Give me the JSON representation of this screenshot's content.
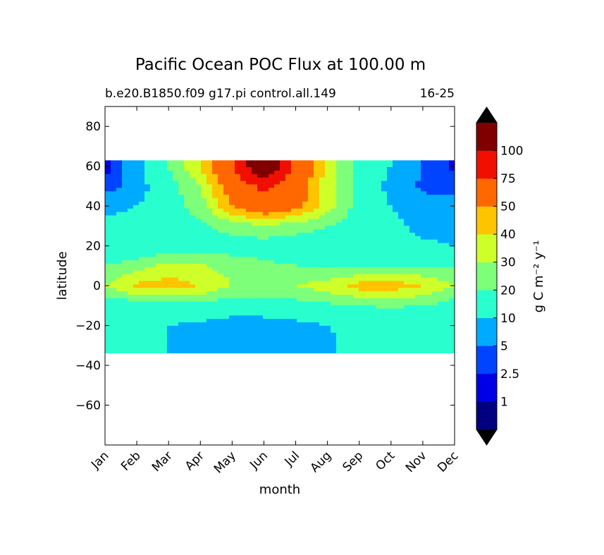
{
  "chart_data": {
    "type": "heatmap",
    "subtype": "filled-contour",
    "title": "Pacific Ocean POC Flux at 100.00 m",
    "subtitle_left": "b.e20.B1850.f09 g17.pi control.all.149",
    "subtitle_right": "16-25",
    "xlabel": "month",
    "ylabel": "latitude",
    "x_ticks": [
      "Jan",
      "Feb",
      "Mar",
      "Apr",
      "May",
      "Jun",
      "Jul",
      "Aug",
      "Sep",
      "Oct",
      "Nov",
      "Dec"
    ],
    "y_ticks": [
      80,
      60,
      40,
      20,
      0,
      -20,
      -40,
      -60
    ],
    "y_tick_labels": [
      "80",
      "60",
      "40",
      "20",
      "0",
      "−20",
      "−40",
      "−60"
    ],
    "xlim": [
      0,
      11
    ],
    "ylim": [
      -80,
      90
    ],
    "data_lat_range": [
      -34,
      63
    ],
    "grid": false,
    "colorbar": {
      "label": "g C m⁻² y⁻¹",
      "extend": "both",
      "levels": [
        1,
        2.5,
        5,
        10,
        20,
        30,
        40,
        50,
        75,
        100
      ],
      "level_labels": [
        "1",
        "2.5",
        "5",
        "10",
        "20",
        "30",
        "40",
        "50",
        "75",
        "100"
      ],
      "colors": [
        "#000080",
        "#0000e6",
        "#0044ff",
        "#00aaff",
        "#29ffce",
        "#7dff7a",
        "#ceff29",
        "#ffc400",
        "#ff6800",
        "#f00f00",
        "#800000"
      ],
      "under_color": "#000000",
      "over_color": "#000000"
    },
    "levels_by_lat": [
      {
        "lat": 60,
        "values": [
          1.5,
          8,
          20,
          40,
          70,
          130,
          70,
          35,
          15,
          10,
          5,
          2
        ]
      },
      {
        "lat": 50,
        "values": [
          3,
          7,
          15,
          30,
          60,
          80,
          60,
          35,
          15,
          8,
          4,
          3
        ]
      },
      {
        "lat": 40,
        "values": [
          8,
          10,
          15,
          25,
          50,
          65,
          55,
          35,
          15,
          10,
          7,
          8
        ]
      },
      {
        "lat": 30,
        "values": [
          12,
          12,
          15,
          18,
          25,
          28,
          25,
          20,
          15,
          12,
          8,
          8
        ]
      },
      {
        "lat": 20,
        "values": [
          10,
          10,
          12,
          14,
          15,
          15,
          14,
          12,
          11,
          11,
          11,
          10
        ]
      },
      {
        "lat": 10,
        "values": [
          20,
          25,
          33,
          32,
          25,
          22,
          20,
          18,
          17,
          18,
          20,
          20
        ]
      },
      {
        "lat": 0,
        "values": [
          30,
          43,
          45,
          40,
          30,
          28,
          30,
          35,
          45,
          46,
          40,
          30
        ]
      },
      {
        "lat": -10,
        "values": [
          12,
          13,
          15,
          15,
          14,
          14,
          16,
          18,
          20,
          21,
          20,
          15
        ]
      },
      {
        "lat": -20,
        "values": [
          11,
          11,
          10,
          9,
          7,
          7,
          8,
          10,
          11,
          12,
          12,
          11
        ]
      },
      {
        "lat": -30,
        "values": [
          11,
          11,
          10,
          8,
          6,
          7,
          8,
          9,
          13,
          17,
          18,
          15
        ]
      }
    ]
  }
}
